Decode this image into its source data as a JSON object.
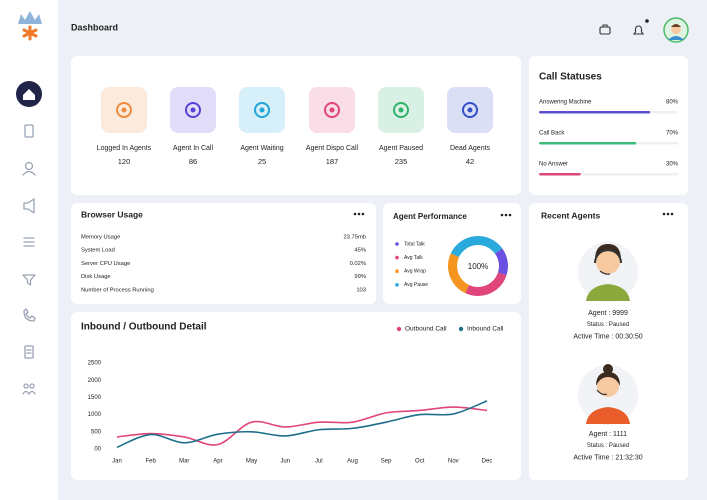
{
  "header": {
    "title": "Dashboard"
  },
  "stats": [
    {
      "label": "Logged In Agents",
      "value": 120,
      "color": "#f08a3c"
    },
    {
      "label": "Agent In Call",
      "value": 86,
      "color": "#5b3fd6"
    },
    {
      "label": "Agent Waiting",
      "value": 25,
      "color": "#1fa5d8"
    },
    {
      "label": "Agent Dispo Call",
      "value": 187,
      "color": "#e0457b"
    },
    {
      "label": "Agent Paused",
      "value": 235,
      "color": "#2fb26b"
    },
    {
      "label": "Dead Agents",
      "value": 42,
      "color": "#3450c8"
    }
  ],
  "call_statuses": {
    "title": "Call Statuses",
    "items": [
      {
        "label": "Answering Machine",
        "value": 80,
        "value_label": "80%",
        "color": "#5a4fcf"
      },
      {
        "label": "Call Back",
        "value": 70,
        "value_label": "70%",
        "color": "#3dbd7d"
      },
      {
        "label": "No Answer",
        "value": 30,
        "value_label": "30%",
        "color": "#d9487a"
      }
    ]
  },
  "browser_usage": {
    "title": "Browser Usage",
    "rows": [
      {
        "label": "Memory Usage",
        "value": "23.75mb",
        "color": "#f08c2a"
      },
      {
        "label": "System Load",
        "value": "45%",
        "color": "#6c4bd8"
      },
      {
        "label": "Server CPU Usage",
        "value": "0.02%",
        "color": "#2e9be0"
      },
      {
        "label": "Disk Usage",
        "value": "99%",
        "color": "#e0457b"
      },
      {
        "label": "Number of Process Running",
        "value": "103",
        "color": "#2fa866"
      }
    ]
  },
  "agent_performance": {
    "title": "Agent Performance",
    "center_label": "100%",
    "series": [
      {
        "name": "Total Talk",
        "color": "#6a4fe0",
        "value": 15
      },
      {
        "name": "Avg Talk",
        "color": "#e0457b",
        "value": 27
      },
      {
        "name": "Avg Wrap",
        "color": "#f5941e",
        "value": 25
      },
      {
        "name": "Avg Pause",
        "color": "#29a9dc",
        "value": 33
      }
    ]
  },
  "chart_data": {
    "type": "line",
    "title": "Inbound / Outbound Detail",
    "categories": [
      "Jan",
      "Feb",
      "Mar",
      "Apr",
      "May",
      "Jun",
      "Jul",
      "Aug",
      "Sep",
      "Oct",
      "Nov",
      "Dec"
    ],
    "series": [
      {
        "name": "Outbound Call",
        "color": "#e0457b",
        "values": [
          350,
          450,
          350,
          130,
          780,
          640,
          780,
          780,
          1050,
          1120,
          1220,
          1120
        ]
      },
      {
        "name": "Inbound Call",
        "color": "#1f6f8b",
        "values": [
          50,
          420,
          180,
          430,
          500,
          380,
          560,
          600,
          780,
          1000,
          1020,
          1400
        ]
      }
    ],
    "ylim": [
      0,
      2500
    ],
    "yticks": [
      {
        "value": 0,
        "label": "00"
      },
      500,
      1000,
      1500,
      2000,
      2500
    ]
  },
  "recent_agents": {
    "title": "Recent Agents",
    "agents": [
      {
        "agent": "Agent : 9999",
        "status": "Status : Paused",
        "active": "Active Time : 00:30:50"
      },
      {
        "agent": "Agent : 1111",
        "status": "Status : Paused",
        "active": "Active Time : 21:32:30"
      }
    ]
  }
}
